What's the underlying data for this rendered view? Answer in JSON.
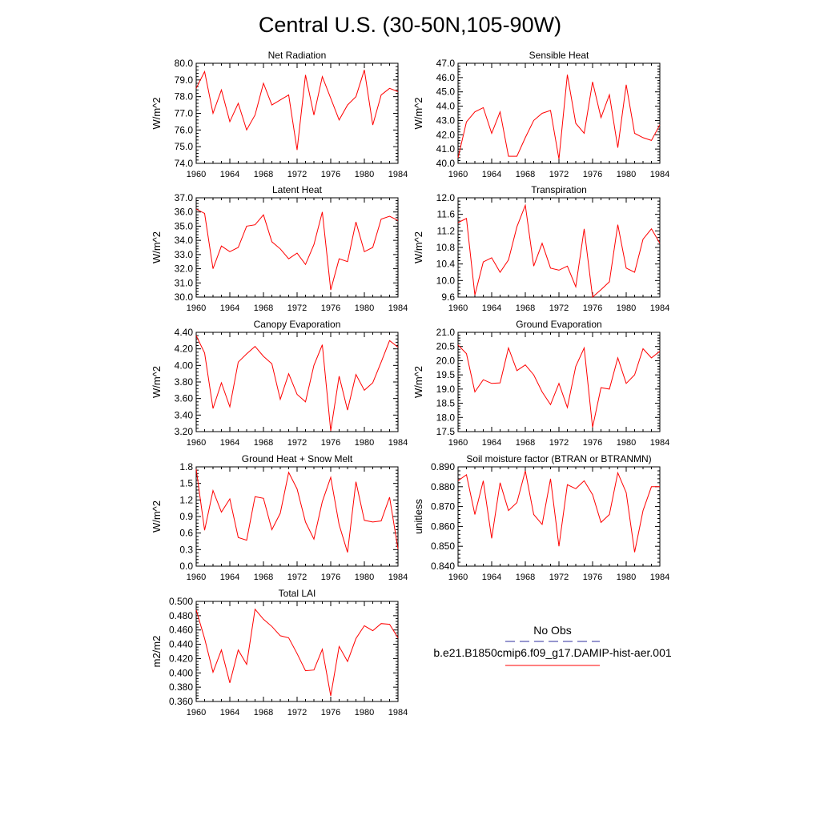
{
  "page": {
    "title": "Central U.S. (30-50N,105-90W)"
  },
  "legend": {
    "obs_label": "No Obs",
    "obs_color": "#2f2f9f",
    "model_label": "b.e21.B1850cmip6.f09_g17.DAMIP-hist-aer.001",
    "model_color": "#ff0000"
  },
  "line_color": "#ff0000",
  "chart_data": [
    {
      "type": "line",
      "title": "Net Radiation",
      "ylabel": "W/m^2",
      "xlim": [
        1960,
        1984
      ],
      "ylim": [
        74.0,
        80.0
      ],
      "xticks": [
        1960,
        1964,
        1968,
        1972,
        1976,
        1980,
        1984
      ],
      "yticks": [
        "74.0",
        "75.0",
        "76.0",
        "77.0",
        "78.0",
        "79.0",
        "80.0"
      ],
      "x": [
        1960,
        1961,
        1962,
        1963,
        1964,
        1965,
        1966,
        1967,
        1968,
        1969,
        1970,
        1971,
        1972,
        1973,
        1974,
        1975,
        1976,
        1977,
        1978,
        1979,
        1980,
        1981,
        1982,
        1983,
        1984
      ],
      "series": [
        {
          "values": [
            78.5,
            79.5,
            77.0,
            78.4,
            76.5,
            77.6,
            76.0,
            76.9,
            78.8,
            77.5,
            77.8,
            78.1,
            74.8,
            79.3,
            76.9,
            79.2,
            77.9,
            76.6,
            77.5,
            78.0,
            79.6,
            76.3,
            78.1,
            78.5,
            78.3
          ]
        }
      ]
    },
    {
      "type": "line",
      "title": "Sensible Heat",
      "ylabel": "W/m^2",
      "xlim": [
        1960,
        1984
      ],
      "ylim": [
        40.0,
        47.0
      ],
      "xticks": [
        1960,
        1964,
        1968,
        1972,
        1976,
        1980,
        1984
      ],
      "yticks": [
        "40.0",
        "41.0",
        "42.0",
        "43.0",
        "44.0",
        "45.0",
        "46.0",
        "47.0"
      ],
      "x": [
        1960,
        1961,
        1962,
        1963,
        1964,
        1965,
        1966,
        1967,
        1968,
        1969,
        1970,
        1971,
        1972,
        1973,
        1974,
        1975,
        1976,
        1977,
        1978,
        1979,
        1980,
        1981,
        1982,
        1983,
        1984
      ],
      "series": [
        {
          "values": [
            40.4,
            42.9,
            43.6,
            43.9,
            42.1,
            43.6,
            40.5,
            40.5,
            41.8,
            43.0,
            43.5,
            43.7,
            40.3,
            46.2,
            42.8,
            42.1,
            45.7,
            43.2,
            44.8,
            41.1,
            45.5,
            42.1,
            41.8,
            41.6,
            42.7
          ]
        }
      ]
    },
    {
      "type": "line",
      "title": "Latent Heat",
      "ylabel": "W/m^2",
      "xlim": [
        1960,
        1984
      ],
      "ylim": [
        30.0,
        37.0
      ],
      "xticks": [
        1960,
        1964,
        1968,
        1972,
        1976,
        1980,
        1984
      ],
      "yticks": [
        "30.0",
        "31.0",
        "32.0",
        "33.0",
        "34.0",
        "35.0",
        "36.0",
        "37.0"
      ],
      "x": [
        1960,
        1961,
        1962,
        1963,
        1964,
        1965,
        1966,
        1967,
        1968,
        1969,
        1970,
        1971,
        1972,
        1973,
        1974,
        1975,
        1976,
        1977,
        1978,
        1979,
        1980,
        1981,
        1982,
        1983,
        1984
      ],
      "series": [
        {
          "values": [
            36.2,
            35.9,
            32.0,
            33.6,
            33.2,
            33.5,
            35.0,
            35.1,
            35.8,
            33.9,
            33.4,
            32.7,
            33.1,
            32.3,
            33.7,
            36.0,
            30.5,
            32.7,
            32.5,
            35.3,
            33.2,
            33.5,
            35.5,
            35.7,
            35.4
          ]
        }
      ]
    },
    {
      "type": "line",
      "title": "Transpiration",
      "ylabel": "W/m^2",
      "xlim": [
        1960,
        1984
      ],
      "ylim": [
        9.6,
        12.0
      ],
      "xticks": [
        1960,
        1964,
        1968,
        1972,
        1976,
        1980,
        1984
      ],
      "yticks": [
        "9.6",
        "10.0",
        "10.4",
        "10.8",
        "11.2",
        "11.6",
        "12.0"
      ],
      "x": [
        1960,
        1961,
        1962,
        1963,
        1964,
        1965,
        1966,
        1967,
        1968,
        1969,
        1970,
        1971,
        1972,
        1973,
        1974,
        1975,
        1976,
        1977,
        1978,
        1979,
        1980,
        1981,
        1982,
        1983,
        1984
      ],
      "series": [
        {
          "values": [
            11.4,
            11.5,
            9.65,
            10.45,
            10.55,
            10.2,
            10.5,
            11.3,
            11.82,
            10.35,
            10.9,
            10.3,
            10.25,
            10.35,
            9.85,
            11.25,
            9.6,
            9.78,
            9.97,
            11.35,
            10.3,
            10.2,
            11.0,
            11.25,
            10.9
          ]
        }
      ]
    },
    {
      "type": "line",
      "title": "Canopy Evaporation",
      "ylabel": "W/m^2",
      "xlim": [
        1960,
        1984
      ],
      "ylim": [
        3.2,
        4.4
      ],
      "xticks": [
        1960,
        1964,
        1968,
        1972,
        1976,
        1980,
        1984
      ],
      "yticks": [
        "3.20",
        "3.40",
        "3.60",
        "3.80",
        "4.00",
        "4.20",
        "4.40"
      ],
      "x": [
        1960,
        1961,
        1962,
        1963,
        1964,
        1965,
        1966,
        1967,
        1968,
        1969,
        1970,
        1971,
        1972,
        1973,
        1974,
        1975,
        1976,
        1977,
        1978,
        1979,
        1980,
        1981,
        1982,
        1983,
        1984
      ],
      "series": [
        {
          "values": [
            4.36,
            4.15,
            3.48,
            3.79,
            3.5,
            4.04,
            4.14,
            4.23,
            4.11,
            4.02,
            3.59,
            3.9,
            3.65,
            3.56,
            4.0,
            4.25,
            3.21,
            3.87,
            3.46,
            3.89,
            3.7,
            3.79,
            4.04,
            4.3,
            4.22
          ]
        }
      ]
    },
    {
      "type": "line",
      "title": "Ground Evaporation",
      "ylabel": "W/m^2",
      "xlim": [
        1960,
        1984
      ],
      "ylim": [
        17.5,
        21.0
      ],
      "xticks": [
        1960,
        1964,
        1968,
        1972,
        1976,
        1980,
        1984
      ],
      "yticks": [
        "17.5",
        "18.0",
        "18.5",
        "19.0",
        "19.5",
        "20.0",
        "20.5",
        "21.0"
      ],
      "x": [
        1960,
        1961,
        1962,
        1963,
        1964,
        1965,
        1966,
        1967,
        1968,
        1969,
        1970,
        1971,
        1972,
        1973,
        1974,
        1975,
        1976,
        1977,
        1978,
        1979,
        1980,
        1981,
        1982,
        1983,
        1984
      ],
      "series": [
        {
          "values": [
            20.55,
            20.25,
            18.9,
            19.33,
            19.2,
            19.22,
            20.45,
            19.65,
            19.85,
            19.5,
            18.9,
            18.45,
            19.2,
            18.35,
            19.8,
            20.45,
            17.65,
            19.05,
            19.0,
            20.1,
            19.2,
            19.5,
            20.42,
            20.1,
            20.33
          ]
        }
      ]
    },
    {
      "type": "line",
      "title": "Ground Heat + Snow Melt",
      "ylabel": "W/m^2",
      "xlim": [
        1960,
        1984
      ],
      "ylim": [
        0.0,
        1.8
      ],
      "xticks": [
        1960,
        1964,
        1968,
        1972,
        1976,
        1980,
        1984
      ],
      "yticks": [
        "0.0",
        "0.3",
        "0.6",
        "0.9",
        "1.2",
        "1.5",
        "1.8"
      ],
      "x": [
        1960,
        1961,
        1962,
        1963,
        1964,
        1965,
        1966,
        1967,
        1968,
        1969,
        1970,
        1971,
        1972,
        1973,
        1974,
        1975,
        1976,
        1977,
        1978,
        1979,
        1980,
        1981,
        1982,
        1983,
        1984
      ],
      "series": [
        {
          "values": [
            1.76,
            0.65,
            1.37,
            0.98,
            1.22,
            0.52,
            0.47,
            1.26,
            1.23,
            0.66,
            0.96,
            1.7,
            1.4,
            0.8,
            0.49,
            1.17,
            1.61,
            0.75,
            0.25,
            1.53,
            0.83,
            0.8,
            0.82,
            1.25,
            0.31
          ]
        }
      ]
    },
    {
      "type": "line",
      "title": "Soil moisture factor (BTRAN or BTRANMN)",
      "ylabel": "unitless",
      "xlim": [
        1960,
        1984
      ],
      "ylim": [
        0.84,
        0.89
      ],
      "xticks": [
        1960,
        1964,
        1968,
        1972,
        1976,
        1980,
        1984
      ],
      "yticks": [
        "0.840",
        "0.850",
        "0.860",
        "0.870",
        "0.880",
        "0.890"
      ],
      "x": [
        1960,
        1961,
        1962,
        1963,
        1964,
        1965,
        1966,
        1967,
        1968,
        1969,
        1970,
        1971,
        1972,
        1973,
        1974,
        1975,
        1976,
        1977,
        1978,
        1979,
        1980,
        1981,
        1982,
        1983,
        1984
      ],
      "series": [
        {
          "values": [
            0.883,
            0.886,
            0.866,
            0.883,
            0.854,
            0.882,
            0.868,
            0.872,
            0.888,
            0.866,
            0.861,
            0.884,
            0.85,
            0.881,
            0.879,
            0.883,
            0.876,
            0.862,
            0.866,
            0.887,
            0.877,
            0.847,
            0.868,
            0.88,
            0.88
          ]
        }
      ]
    },
    {
      "type": "line",
      "title": "Total LAI",
      "ylabel": "m2/m2",
      "xlim": [
        1960,
        1984
      ],
      "ylim": [
        0.36,
        0.5
      ],
      "xticks": [
        1960,
        1964,
        1968,
        1972,
        1976,
        1980,
        1984
      ],
      "yticks": [
        "0.360",
        "0.380",
        "0.400",
        "0.420",
        "0.440",
        "0.460",
        "0.480",
        "0.500"
      ],
      "x": [
        1960,
        1961,
        1962,
        1963,
        1964,
        1965,
        1966,
        1967,
        1968,
        1969,
        1970,
        1971,
        1972,
        1973,
        1974,
        1975,
        1976,
        1977,
        1978,
        1979,
        1980,
        1981,
        1982,
        1983,
        1984
      ],
      "series": [
        {
          "values": [
            0.488,
            0.448,
            0.401,
            0.432,
            0.386,
            0.432,
            0.412,
            0.489,
            0.475,
            0.465,
            0.452,
            0.449,
            0.427,
            0.403,
            0.404,
            0.433,
            0.368,
            0.437,
            0.416,
            0.448,
            0.466,
            0.459,
            0.469,
            0.468,
            0.449
          ]
        }
      ]
    }
  ]
}
